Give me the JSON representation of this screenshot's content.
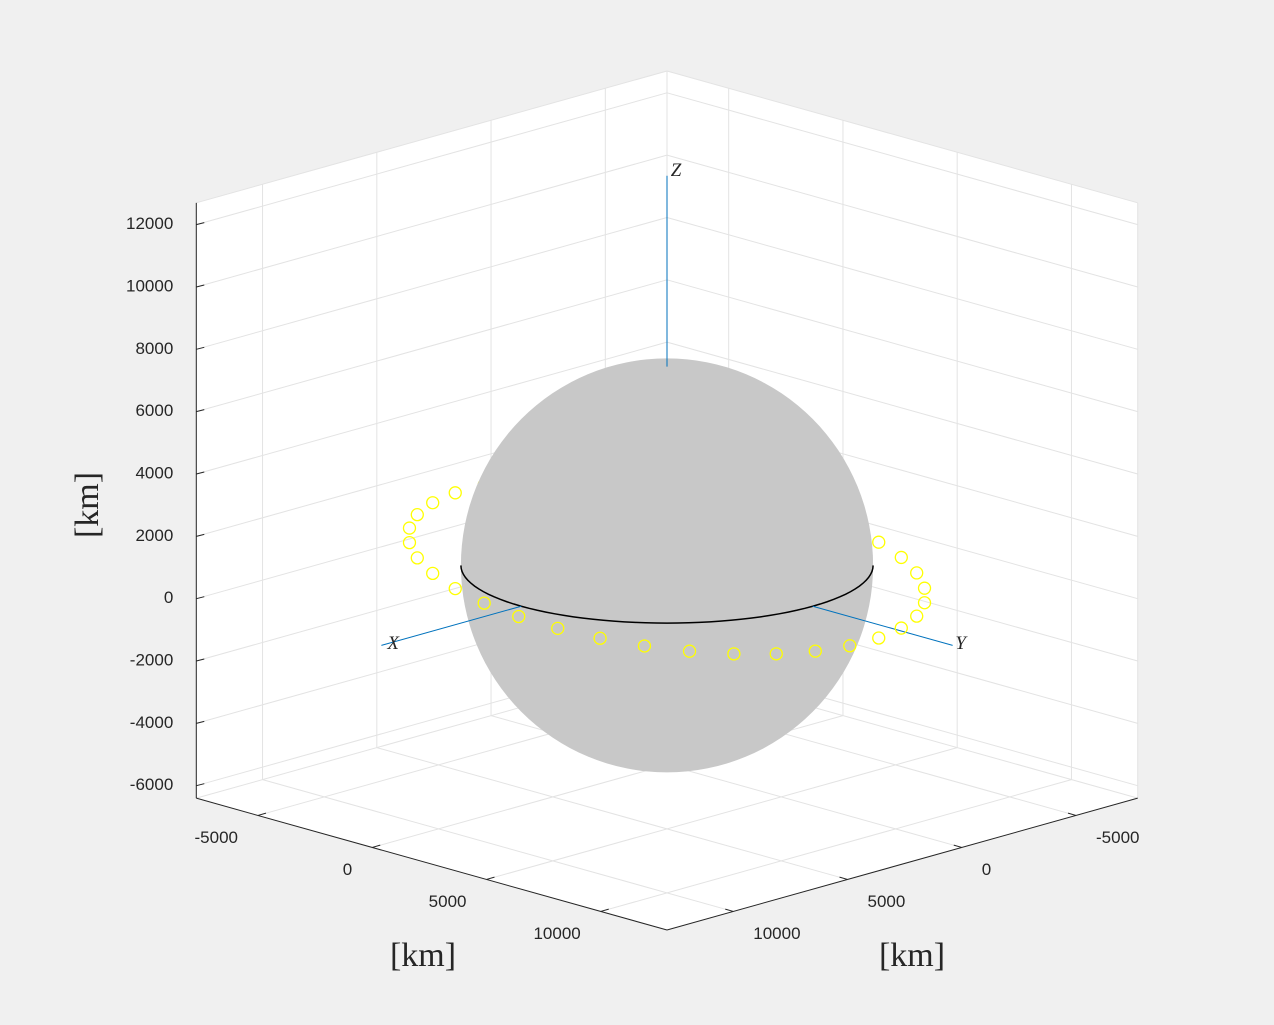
{
  "chart_data": {
    "type": "scatter3",
    "xlim": [
      -7700,
      12900
    ],
    "ylim": [
      -7700,
      12900
    ],
    "zlim": [
      -6400,
      12700
    ],
    "xticks": [
      -5000,
      0,
      5000,
      10000
    ],
    "yticks": [
      -5000,
      0,
      5000,
      10000
    ],
    "zticks": [
      -6000,
      -4000,
      -2000,
      0,
      2000,
      4000,
      6000,
      8000,
      10000,
      12000
    ],
    "xlabel": "[km]",
    "ylabel": "[km]",
    "zlabel": "[km]",
    "grid": true,
    "sphere": {
      "radius": 6378,
      "color": "#c8c8c8"
    },
    "triad": {
      "length": 12500,
      "color": "#0072bd",
      "labels": [
        "X",
        "Y",
        "Z"
      ]
    },
    "series": [
      {
        "color": "#ffff00",
        "x": [
          8000,
          7878,
          7518,
          6928,
          6128,
          5142,
          4000,
          2736,
          1389,
          0,
          -1389,
          -2736,
          -4000,
          -5142,
          -6128,
          -6928,
          -7518,
          -7878,
          -8000,
          -7878,
          -7518,
          -6928,
          -6128,
          -5142,
          -4000,
          -2736,
          -1389,
          0,
          1389,
          2736,
          4000,
          5142,
          6128,
          6928,
          7518,
          7878
        ],
        "y": [
          0,
          1389,
          2736,
          4000,
          5142,
          6128,
          6928,
          7518,
          7878,
          8000,
          7878,
          7518,
          6928,
          6128,
          5142,
          4000,
          2736,
          1389,
          0,
          -1389,
          -2736,
          -4000,
          -5142,
          -6128,
          -6928,
          -7518,
          -7878,
          -8000,
          -7878,
          -7518,
          -6928,
          -6128,
          -5142,
          -4000,
          -2736,
          -1389
        ],
        "z": [
          432,
          263,
          86,
          -94,
          -271,
          -439,
          -595,
          -732,
          -847,
          -936,
          -997,
          -1028,
          -1027,
          -995,
          -933,
          -842,
          -726,
          -588,
          -432,
          -263,
          -86,
          94,
          271,
          439,
          595,
          732,
          847,
          936,
          997,
          1028,
          1027,
          995,
          933,
          842,
          726,
          588
        ]
      }
    ]
  }
}
